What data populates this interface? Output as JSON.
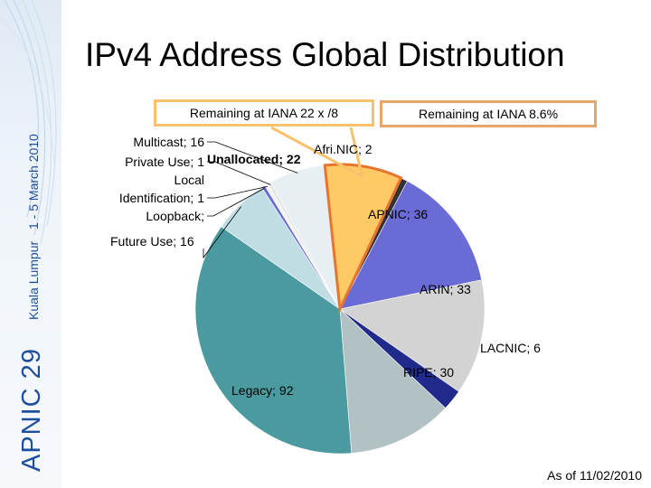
{
  "slide": {
    "title": "IPv4 Address Global Distribution",
    "footnote": "As of 11/02/2010"
  },
  "sidebar": {
    "brand": "APNIC 29",
    "location": "Kuala Lumpur",
    "dates": "1 - 5 March 2010",
    "brand_color": "#1f4e9c"
  },
  "callouts": {
    "left": "Remaining at IANA  22 x /8",
    "right": "Remaining at IANA  8.6%"
  },
  "chart_data": {
    "type": "pie",
    "title": "",
    "unit": "/8 blocks",
    "slices": [
      {
        "label": "Unallocated",
        "value": 22,
        "display": "Unallocated; 22",
        "color": "#ffc966",
        "highlighted": true
      },
      {
        "label": "AfriNIC",
        "value": 2,
        "display": "Afri.NIC; 2",
        "color": "#333333"
      },
      {
        "label": "APNIC",
        "value": 36,
        "display": "APNIC; 36",
        "color": "#6b6bd6"
      },
      {
        "label": "ARIN",
        "value": 33,
        "display": "ARIN; 33",
        "color": "#d3d3d3"
      },
      {
        "label": "LACNIC",
        "value": 6,
        "display": "LACNIC; 6",
        "color": "#1f2a8a"
      },
      {
        "label": "RIPE",
        "value": 30,
        "display": "RIPE; 30",
        "color": "#b2c2c4"
      },
      {
        "label": "Legacy",
        "value": 92,
        "display": "Legacy; 92",
        "color": "#4b9a9f"
      },
      {
        "label": "Future Use",
        "value": 16,
        "display": "Future Use; 16",
        "color": "#bfdde3"
      },
      {
        "label": "Loopback",
        "value": 1,
        "display": "Loopback;",
        "color": "#6b6bd6"
      },
      {
        "label": "Local Identification",
        "value": 1,
        "display": "Local Identification; 1",
        "color": "#f2f2f2"
      },
      {
        "label": "Private Use",
        "value": 1,
        "display": "Private Use; 1",
        "color": "#e6e6e6"
      },
      {
        "label": "Multicast",
        "value": 16,
        "display": "Multicast; 16",
        "color": "#e8eff3"
      }
    ]
  }
}
